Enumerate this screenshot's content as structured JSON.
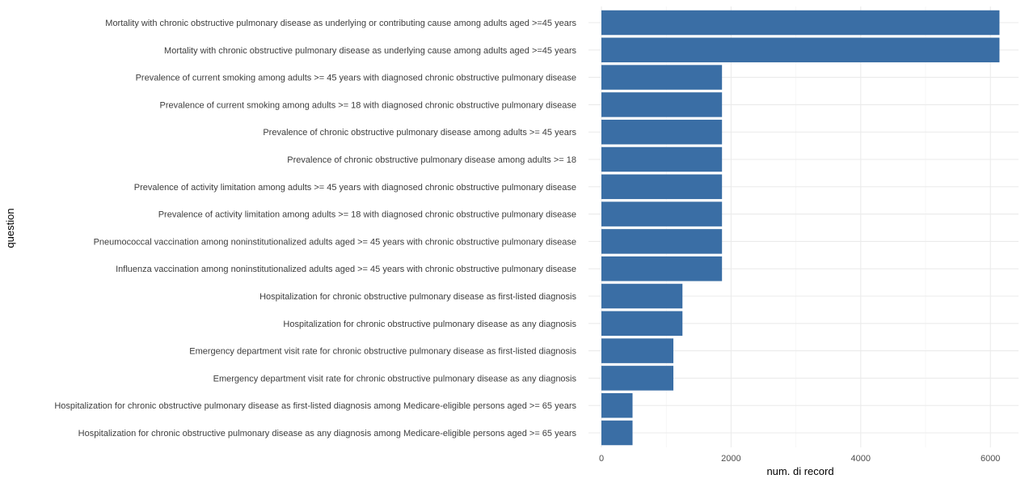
{
  "chart_data": {
    "type": "bar",
    "orientation": "horizontal",
    "xlabel": "num. di record",
    "ylabel": "question",
    "xlim": [
      0,
      6450
    ],
    "x_ticks": [
      0,
      2000,
      4000,
      6000
    ],
    "x_tick_labels": [
      "0",
      "2000",
      "4000",
      "6000"
    ],
    "grid": true,
    "bar_color": "#3a6ea5",
    "categories": [
      "Mortality with chronic obstructive pulmonary disease as underlying or contributing cause among adults aged >=45 years",
      "Mortality with chronic obstructive pulmonary disease as underlying cause among adults aged >=45 years",
      "Prevalence of current smoking among adults >= 45 years with diagnosed chronic obstructive pulmonary disease",
      "Prevalence of current smoking among adults >= 18 with diagnosed chronic obstructive pulmonary disease",
      "Prevalence of chronic obstructive pulmonary disease among adults >= 45 years",
      "Prevalence of chronic obstructive pulmonary disease among adults >= 18",
      "Prevalence of activity limitation among adults >= 45 years with diagnosed chronic obstructive pulmonary disease",
      "Prevalence of activity limitation among adults >= 18 with diagnosed chronic obstructive pulmonary disease",
      "Pneumococcal vaccination among noninstitutionalized adults aged >= 45 years with chronic obstructive pulmonary disease",
      "Influenza vaccination among noninstitutionalized adults aged >= 45 years with chronic obstructive pulmonary disease",
      "Hospitalization for chronic obstructive pulmonary disease as first-listed diagnosis",
      "Hospitalization for chronic obstructive pulmonary disease as any diagnosis",
      "Emergency department visit rate for chronic obstructive pulmonary disease as first-listed diagnosis",
      "Emergency department visit rate for chronic obstructive pulmonary disease as any diagnosis",
      "Hospitalization for chronic obstructive pulmonary disease as first-listed diagnosis among Medicare-eligible persons aged >= 65 years",
      "Hospitalization for chronic obstructive pulmonary disease as any diagnosis among Medicare-eligible persons aged >= 65 years"
    ],
    "values": [
      6140,
      6140,
      1860,
      1860,
      1860,
      1860,
      1860,
      1860,
      1860,
      1860,
      1250,
      1250,
      1110,
      1110,
      480,
      480
    ]
  }
}
